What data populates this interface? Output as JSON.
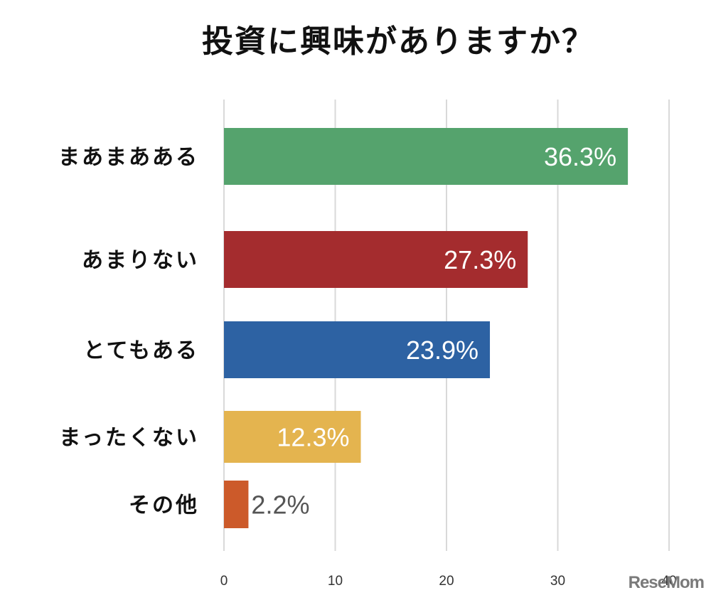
{
  "watermark": "ReseMom",
  "chart_data": {
    "type": "bar",
    "orientation": "horizontal",
    "title": "投資に興味がありますか？",
    "categories": [
      "まあまあある",
      "あまりない",
      "とてもある",
      "まったくない",
      "その他"
    ],
    "values": [
      36.3,
      27.3,
      23.9,
      12.3,
      2.2
    ],
    "value_labels": [
      "36.3%",
      "27.3%",
      "23.9%",
      "12.3%",
      "2.2%"
    ],
    "colors": [
      "#55a36d",
      "#a42c2e",
      "#2d62a3",
      "#e4b44f",
      "#cc5a2a"
    ],
    "label_colors": [
      "#ffffff",
      "#ffffff",
      "#ffffff",
      "#ffffff",
      "#555555"
    ],
    "xlim": [
      0,
      40
    ],
    "xticks": [
      0,
      10,
      20,
      30,
      40
    ],
    "grid": true,
    "legend": "none"
  }
}
